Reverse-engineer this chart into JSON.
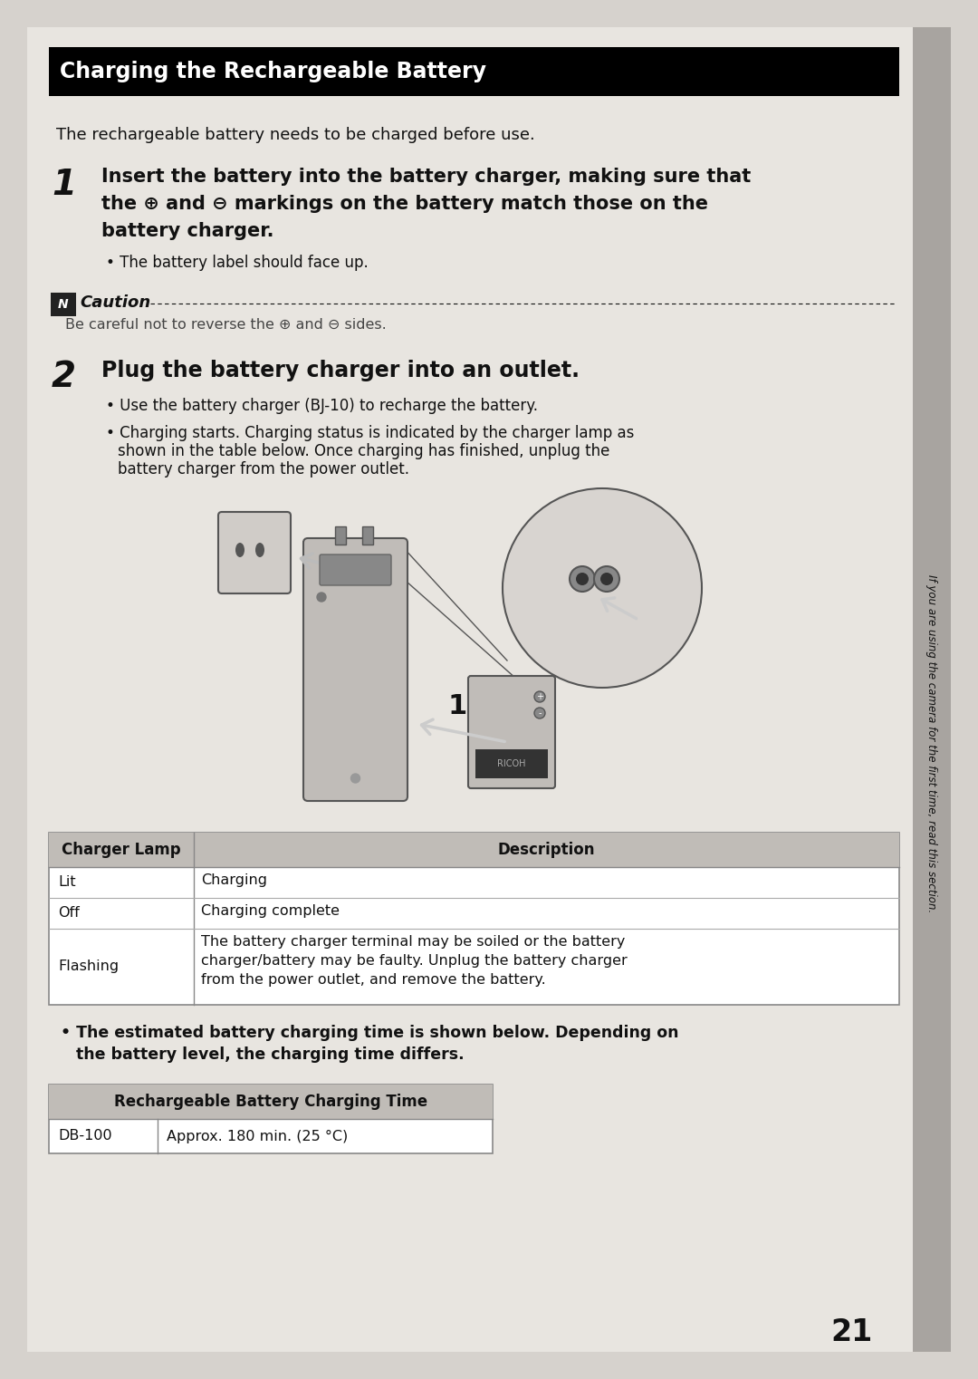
{
  "bg_color": "#d6d2cd",
  "page_color": "#e8e5e0",
  "sidebar_color": "#a8a4a0",
  "title": "Charging the Rechargeable Battery",
  "title_bg": "#000000",
  "title_fg": "#ffffff",
  "intro_text": "The rechargeable battery needs to be charged before use.",
  "step1_num": "1",
  "step1_line1": "Insert the battery into the battery charger, making sure that",
  "step1_line2": "the ⊕ and ⊖ markings on the battery match those on the",
  "step1_line3": "battery charger.",
  "step1_bullet": "The battery label should face up.",
  "caution_label": "Caution",
  "caution_text": "Be careful not to reverse the ⊕ and ⊖ sides.",
  "step2_num": "2",
  "step2_text": "Plug the battery charger into an outlet.",
  "step2_bullet1": "Use the battery charger (BJ-10) to recharge the battery.",
  "step2_bullet2_l1": "Charging starts. Charging status is indicated by the charger lamp as",
  "step2_bullet2_l2": "shown in the table below. Once charging has finished, unplug the",
  "step2_bullet2_l3": "battery charger from the power outlet.",
  "table1_header1": "Charger Lamp",
  "table1_header2": "Description",
  "table1_header_bg": "#c0bcb7",
  "table1_border": "#888888",
  "table1_rows": [
    [
      "Lit",
      "Charging"
    ],
    [
      "Off",
      "Charging complete"
    ],
    [
      "Flashing",
      "The battery charger terminal may be soiled or the battery\ncharger/battery may be faulty. Unplug the battery charger\nfrom the power outlet, and remove the battery."
    ]
  ],
  "charging_bullet_l1": "The estimated battery charging time is shown below. Depending on",
  "charging_bullet_l2": "the battery level, the charging time differs.",
  "table2_header": "Rechargeable Battery Charging Time",
  "table2_header_bg": "#c0bcb7",
  "table2_r1_c1": "DB-100",
  "table2_r1_c2": "Approx. 180 min. (25 °C)",
  "page_number": "21",
  "sidebar_text": "If you are using the camera for the first time, read this section."
}
